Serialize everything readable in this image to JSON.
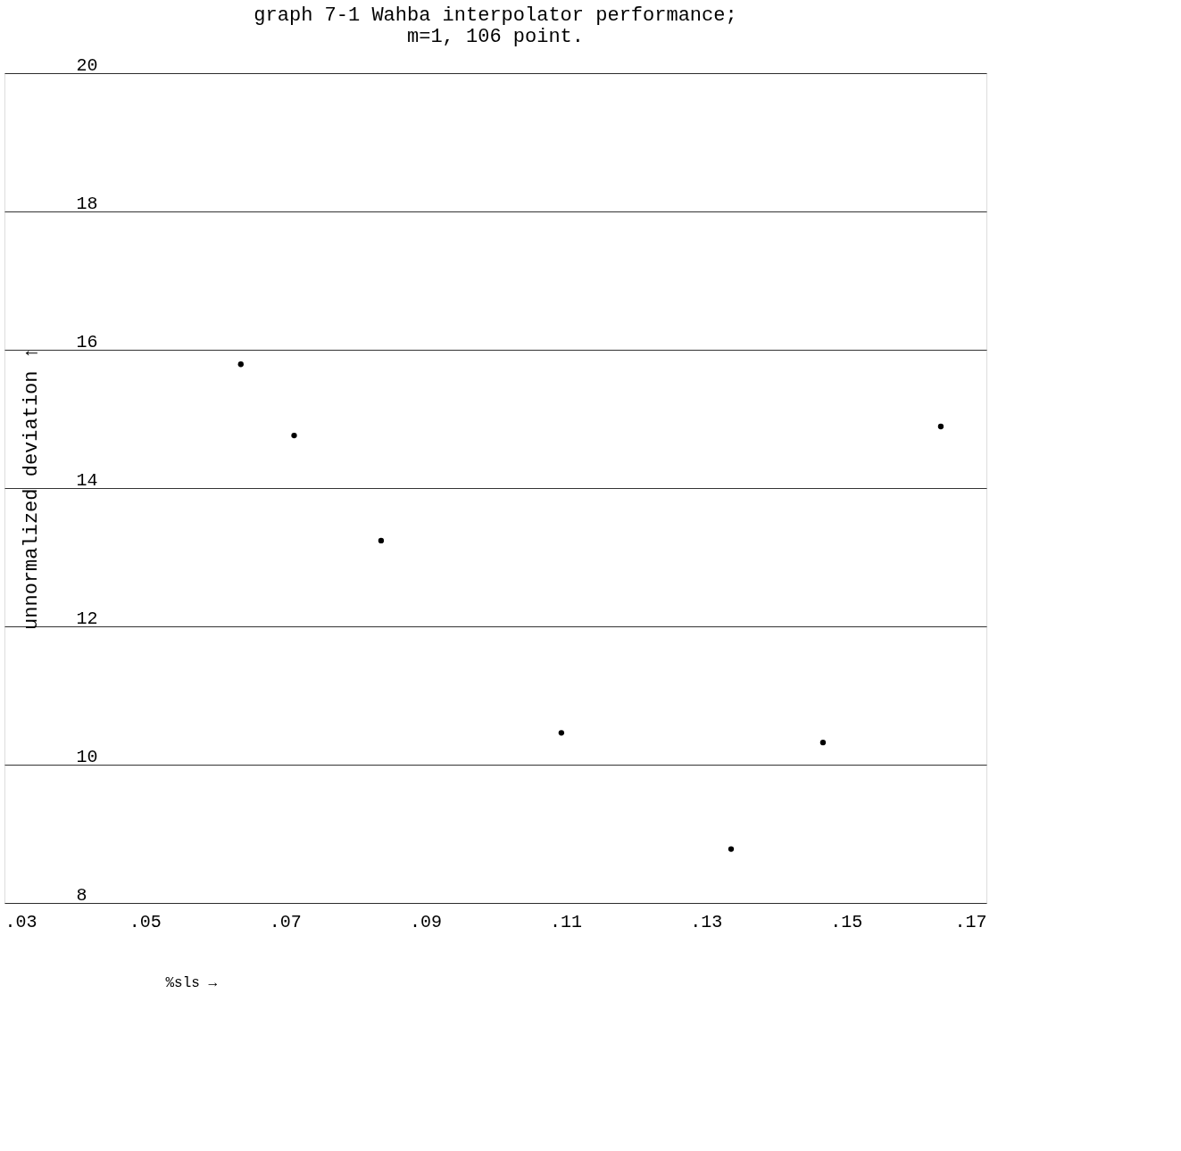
{
  "chart_data": {
    "type": "scatter",
    "title": [
      "graph 7-1 Wahba interpolator performance;",
      "m=1, 106 point."
    ],
    "xlabel": "%sls →",
    "ylabel": "unnormalized deviation ↑",
    "x": [
      0.0637,
      0.0713,
      0.0837,
      0.1094,
      0.1336,
      0.1467,
      0.1635
    ],
    "series": [
      {
        "color": "#000000",
        "values": [
          15.79,
          14.76,
          13.24,
          10.46,
          8.78,
          10.32,
          14.89
        ]
      }
    ],
    "xlim": [
      0.03,
      0.17
    ],
    "xticks": [
      {
        "value": 0.03,
        "label": ".03"
      },
      {
        "value": 0.05,
        "label": ".05"
      },
      {
        "value": 0.07,
        "label": ".07"
      },
      {
        "value": 0.09,
        "label": ".09"
      },
      {
        "value": 0.11,
        "label": ".11"
      },
      {
        "value": 0.13,
        "label": ".13"
      },
      {
        "value": 0.15,
        "label": ".15"
      },
      {
        "value": 0.17,
        "label": ".17"
      }
    ],
    "ylim": [
      8,
      20
    ],
    "yticks": [
      8,
      10,
      12,
      14,
      16,
      18,
      20
    ],
    "grid": "y",
    "marker": "circle"
  }
}
